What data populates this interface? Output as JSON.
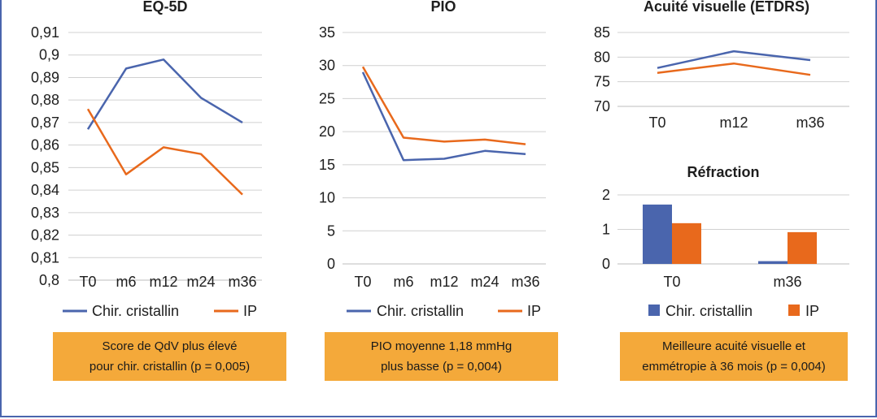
{
  "colors": {
    "chir": "#4a65ad",
    "ip": "#e8691c",
    "grid": "#d0d0d0",
    "note_bg": "#f4a93a",
    "frame": "#4a65ad"
  },
  "legend": {
    "chir": "Chir. cristallin",
    "ip": "IP"
  },
  "chart_data": [
    {
      "id": "eq5d",
      "type": "line",
      "title": "EQ-5D",
      "categories": [
        "T0",
        "m6",
        "m12",
        "m24",
        "m36"
      ],
      "yticks": [
        "0,8",
        "0,81",
        "0,82",
        "0,83",
        "0,84",
        "0,85",
        "0,86",
        "0,87",
        "0,88",
        "0,89",
        "0,9",
        "0,91"
      ],
      "ylim": [
        0.8,
        0.91
      ],
      "series": [
        {
          "name": "Chir. cristallin",
          "values": [
            0.867,
            0.894,
            0.898,
            0.881,
            0.87
          ]
        },
        {
          "name": "IP",
          "values": [
            0.876,
            0.847,
            0.859,
            0.856,
            0.838
          ]
        }
      ]
    },
    {
      "id": "pio",
      "type": "line",
      "title": "PIO",
      "categories": [
        "T0",
        "m6",
        "m12",
        "m24",
        "m36"
      ],
      "yticks": [
        "0",
        "5",
        "10",
        "15",
        "20",
        "25",
        "30",
        "35"
      ],
      "ylim": [
        0,
        35
      ],
      "series": [
        {
          "name": "Chir. cristallin",
          "values": [
            29.0,
            15.7,
            15.9,
            17.1,
            16.6
          ]
        },
        {
          "name": "IP",
          "values": [
            29.8,
            19.1,
            18.5,
            18.8,
            18.1
          ]
        }
      ]
    },
    {
      "id": "acuite",
      "type": "line",
      "title": "Acuité visuelle (ETDRS)",
      "categories": [
        "T0",
        "m12",
        "m36"
      ],
      "yticks": [
        "70",
        "75",
        "80",
        "85"
      ],
      "ylim": [
        70,
        85
      ],
      "series": [
        {
          "name": "Chir. cristallin",
          "values": [
            77.8,
            81.2,
            79.4
          ]
        },
        {
          "name": "IP",
          "values": [
            76.8,
            78.7,
            76.4
          ]
        }
      ]
    },
    {
      "id": "refraction",
      "type": "bar",
      "title": "Réfraction",
      "categories": [
        "T0",
        "m36"
      ],
      "yticks": [
        "0",
        "1",
        "2"
      ],
      "ylim": [
        0,
        2
      ],
      "series": [
        {
          "name": "Chir. cristallin",
          "values": [
            1.72,
            0.08
          ]
        },
        {
          "name": "IP",
          "values": [
            1.18,
            0.92
          ]
        }
      ]
    }
  ],
  "notes": {
    "eq5d": [
      "Score de QdV plus élevé",
      "pour chir. cristallin (p = 0,005)"
    ],
    "pio": [
      "PIO moyenne 1,18 mmHg",
      "plus basse (p = 0,004)"
    ],
    "acuite": [
      "Meilleure acuité visuelle et",
      "emmétropie à 36 mois (p = 0,004)"
    ]
  }
}
